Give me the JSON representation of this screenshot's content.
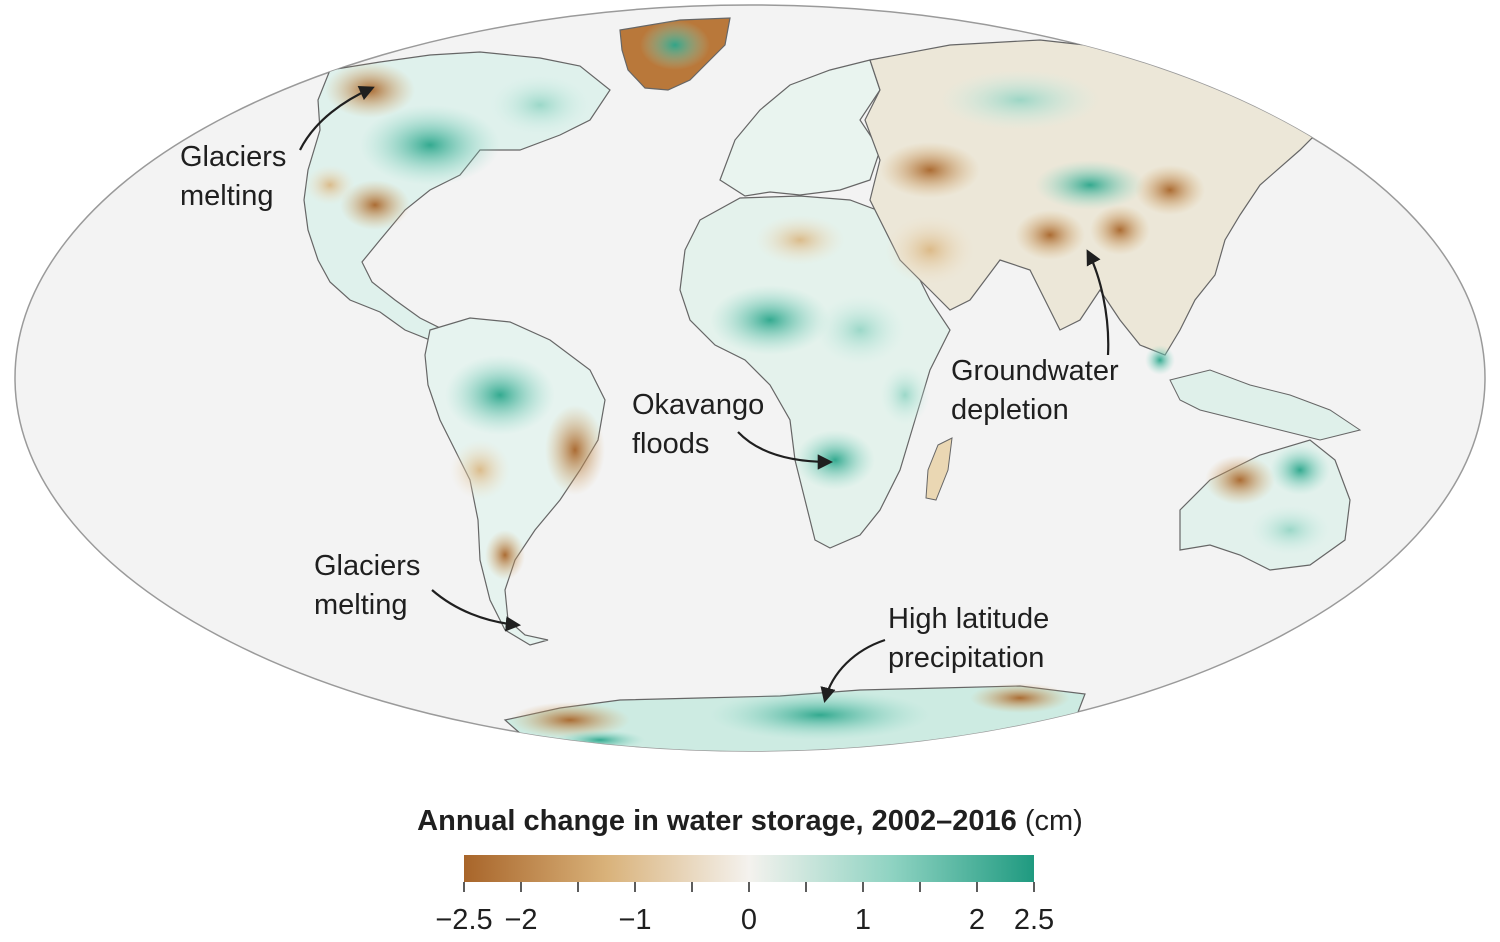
{
  "legend": {
    "title_bold": "Annual change in water storage, 2002–2016",
    "unit": "(cm)",
    "min": -2.5,
    "max": 2.5,
    "ticks": [
      {
        "value": -2.5,
        "label": "−2.5"
      },
      {
        "value": -2,
        "label": "−2"
      },
      {
        "value": -1.5,
        "label": ""
      },
      {
        "value": -1,
        "label": "−1"
      },
      {
        "value": -0.5,
        "label": ""
      },
      {
        "value": 0,
        "label": "0"
      },
      {
        "value": 0.5,
        "label": ""
      },
      {
        "value": 1,
        "label": "1"
      },
      {
        "value": 1.5,
        "label": ""
      },
      {
        "value": 2,
        "label": "2"
      },
      {
        "value": 2.5,
        "label": "2.5"
      }
    ],
    "colors": {
      "negative_strong": "#a8652a",
      "negative_mid": "#d9b27a",
      "neutral": "#f2f2f2",
      "positive_mid": "#8fd3c2",
      "positive_strong": "#1f9a80"
    }
  },
  "annotations": {
    "glaciers_north": [
      "Glaciers",
      "melting"
    ],
    "glaciers_south": [
      "Glaciers",
      "melting"
    ],
    "okavango": [
      "Okavango",
      "floods"
    ],
    "groundwater": [
      "Groundwater",
      "depletion"
    ],
    "high_latitude": [
      "High latitude",
      "precipitation"
    ]
  },
  "map": {
    "projection": "Mollweide",
    "ocean_color": "#f3f3f3",
    "land_outline_color": "#555555"
  }
}
